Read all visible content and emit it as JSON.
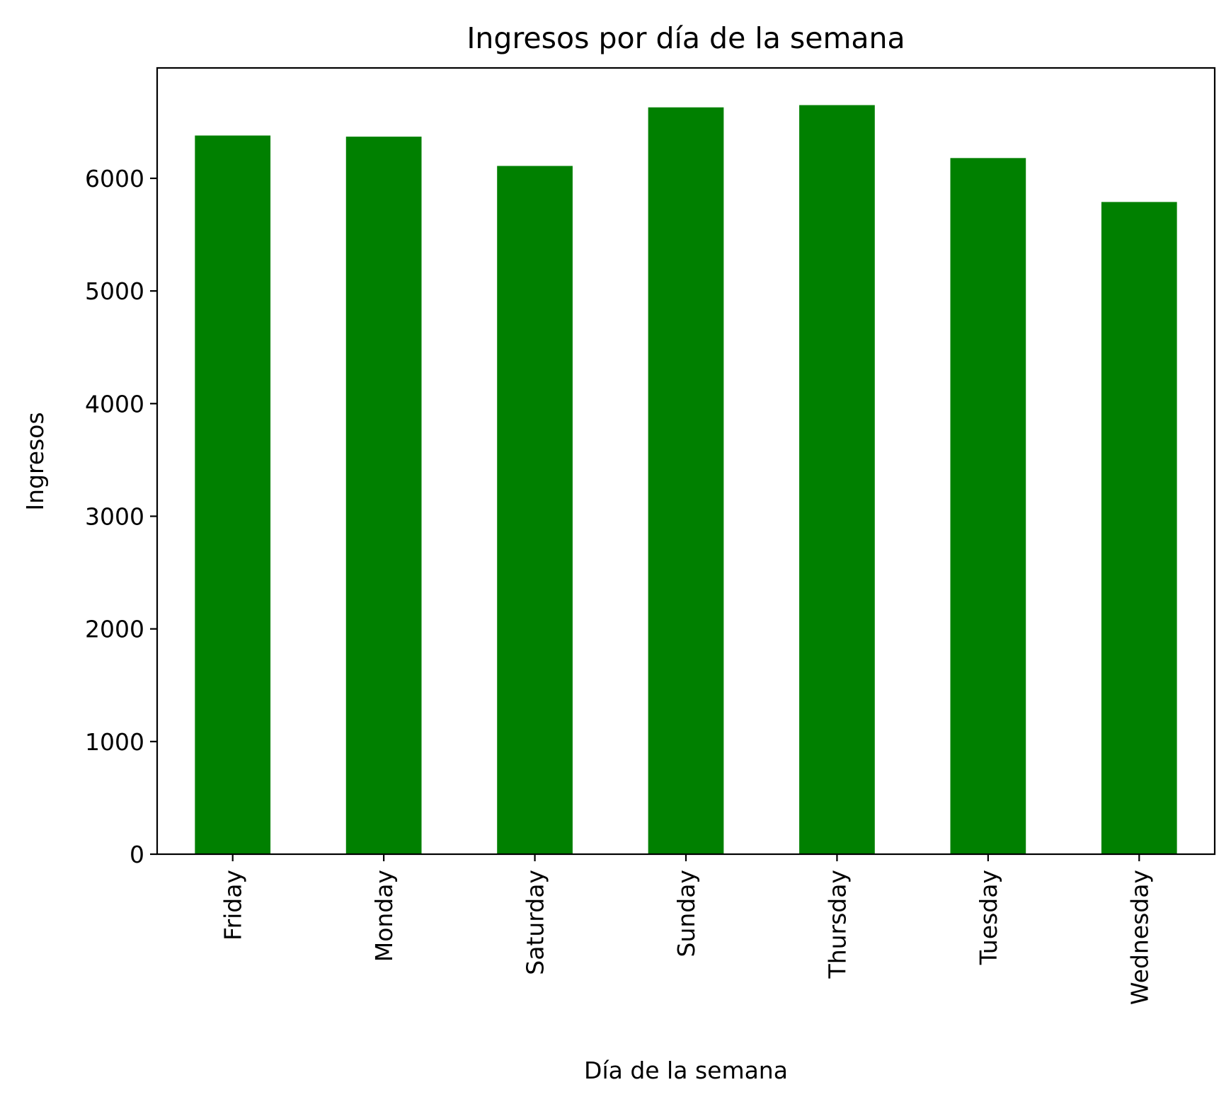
{
  "chart_data": {
    "type": "bar",
    "title": "Ingresos por día de la semana",
    "xlabel": "Día de la semana",
    "ylabel": "Ingresos",
    "categories": [
      "Friday",
      "Monday",
      "Saturday",
      "Sunday",
      "Thursday",
      "Tuesday",
      "Wednesday"
    ],
    "values": [
      6380,
      6370,
      6110,
      6630,
      6650,
      6180,
      5790
    ],
    "ylim": [
      0,
      6980
    ],
    "yticks": [
      0,
      1000,
      2000,
      3000,
      4000,
      5000,
      6000
    ],
    "ytick_labels": [
      "0",
      "1000",
      "2000",
      "3000",
      "4000",
      "5000",
      "6000"
    ],
    "bar_color": "#008000",
    "grid": false,
    "legend": "none"
  }
}
